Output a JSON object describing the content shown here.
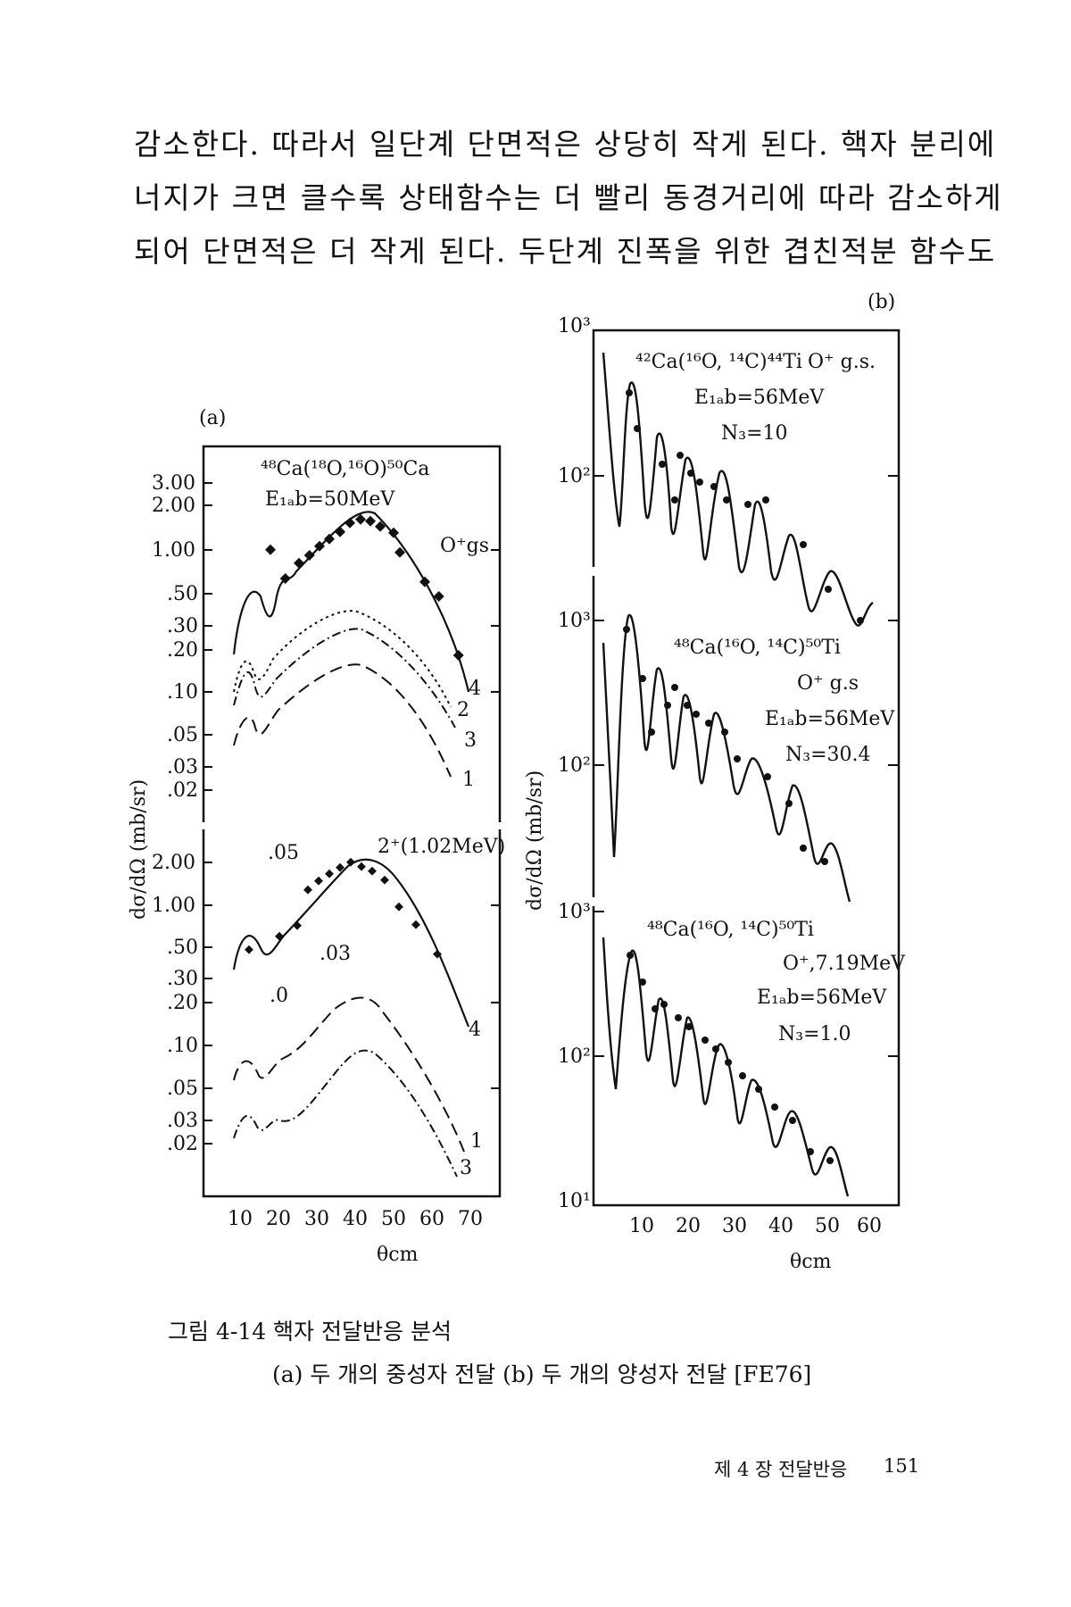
{
  "body_text": [
    "감소한다. 따라서 일단계 단면적은 상당히 작게 된다. 핵자 분리에",
    "너지가 크면 클수록 상태함수는 더 빨리 동경거리에 따라 감소하게",
    "되어 단면적은 더 작게 된다. 두단계 진폭을 위한 겹친적분 함수도"
  ],
  "figure": {
    "panel_a": {
      "label": "(a)",
      "ylabel": "dσ/dΩ (mb/sr)",
      "xlabel": "θcm",
      "x_ticks": [
        "10",
        "20",
        "30",
        "40",
        "50",
        "60",
        "70"
      ],
      "upper": {
        "reaction": "⁴⁸Ca(¹⁸O,¹⁶O)⁵⁰Ca",
        "energy": "E₁ₐb=50MeV",
        "state": "O⁺gs",
        "y_ticks": [
          "3.00",
          "2.00",
          "1.00",
          ".50",
          ".30",
          ".20",
          ".10",
          ".05",
          ".03",
          ".02"
        ],
        "curve_labels": [
          "4",
          "2",
          "3",
          "1"
        ]
      },
      "lower": {
        "state": "2⁺(1.02MeV)",
        "y_ticks": [
          "2.00",
          "1.00",
          ".50",
          ".30",
          ".20",
          ".10",
          ".05",
          ".03",
          ".02"
        ],
        "annotations": [
          ".05",
          ".03",
          ".0"
        ],
        "curve_labels": [
          "4",
          "1",
          "3"
        ]
      }
    },
    "panel_b": {
      "label": "(b)",
      "ylabel": "dσ/dΩ (mb/sr)",
      "xlabel": "θcm",
      "x_ticks": [
        "10",
        "20",
        "30",
        "40",
        "50",
        "60"
      ],
      "subpanels": [
        {
          "reaction": "⁴²Ca(¹⁶O, ¹⁴C)⁴⁴Ti",
          "state": "O⁺ g.s.",
          "energy": "E₁ₐb=56MeV",
          "norm": "N₃=10",
          "y_ticks": [
            "10³",
            "10²"
          ]
        },
        {
          "reaction": "⁴⁸Ca(¹⁶O, ¹⁴C)⁵⁰Ti",
          "state": "O⁺ g.s",
          "energy": "E₁ₐb=56MeV",
          "norm": "N₃=30.4",
          "y_ticks": [
            "10³",
            "10²"
          ]
        },
        {
          "reaction": "⁴⁸Ca(¹⁶O, ¹⁴C)⁵⁰Ti",
          "state": "O⁺,7.19MeV",
          "energy": "E₁ₐb=56MeV",
          "norm": "N₃=1.0",
          "y_ticks": [
            "10³",
            "10²",
            "10¹"
          ]
        }
      ]
    }
  },
  "caption": {
    "title": "그림 4-14 핵자 전달반응 분석",
    "subtitle": "(a) 두 개의 중성자 전달 (b) 두 개의 양성자 전달 [FE76]"
  },
  "footer": {
    "chapter": "제 4 장 전달반응",
    "page_number": "151"
  }
}
